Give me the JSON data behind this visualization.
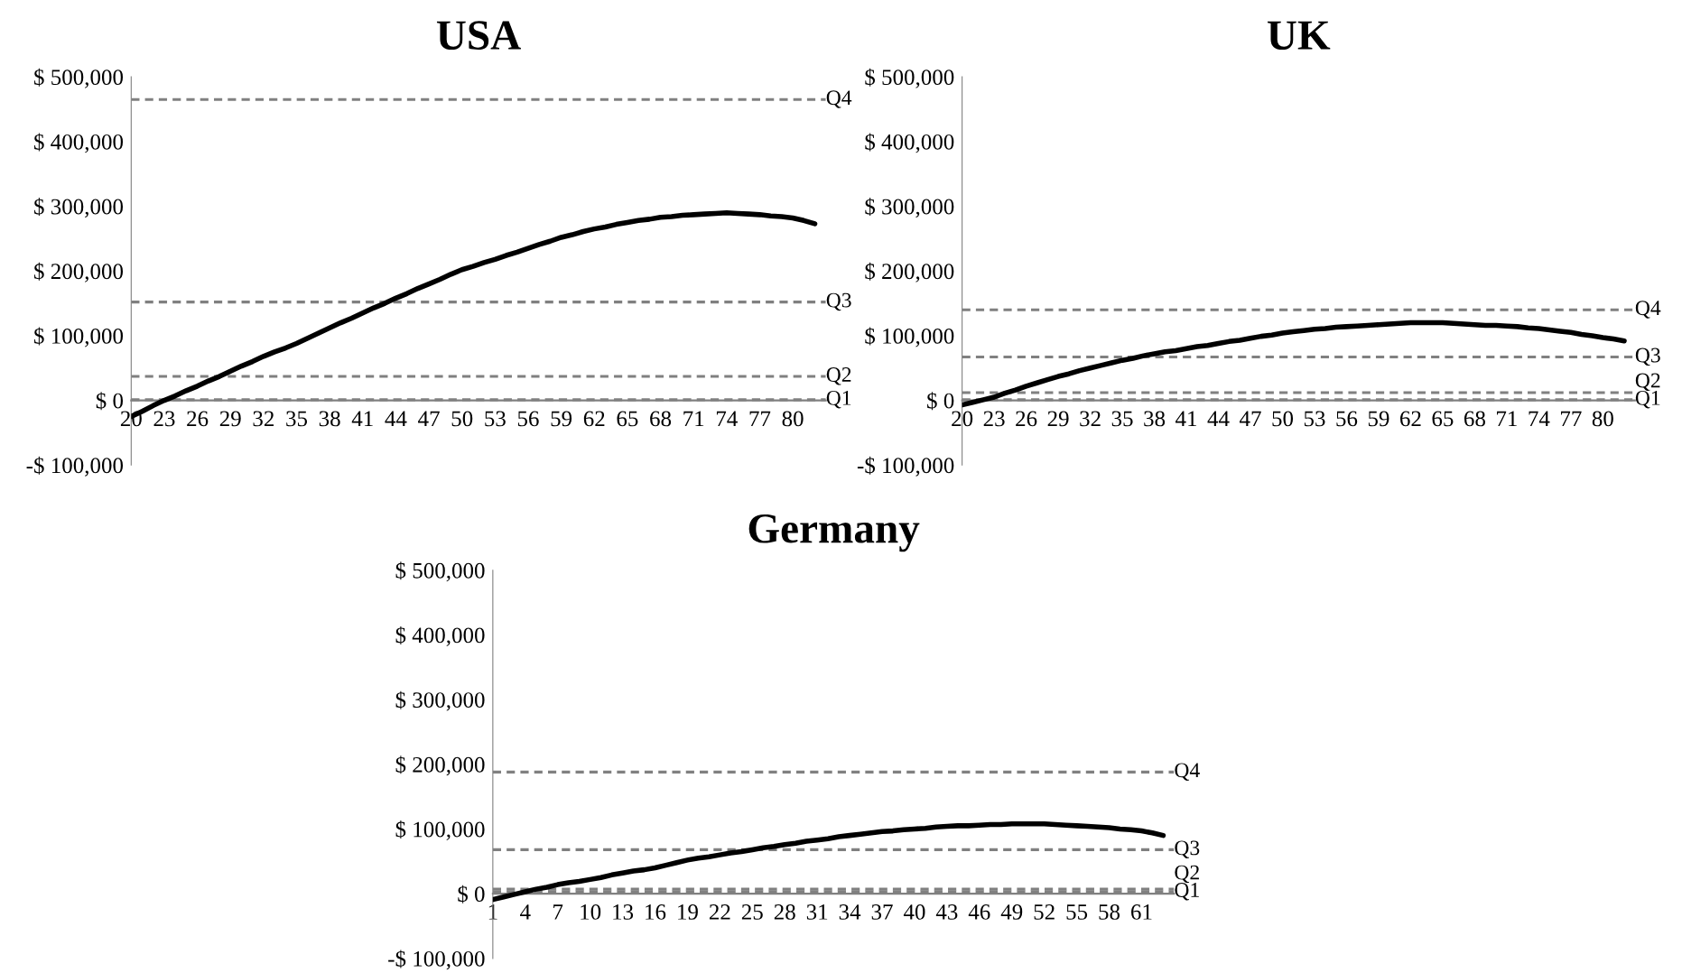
{
  "chart_data": [
    {
      "type": "line",
      "title": "USA",
      "color": "#000000",
      "line_style": "solid",
      "ylim": [
        -100000,
        500000
      ],
      "yticks": [
        {
          "value": -100000,
          "label": "-$ 100,000"
        },
        {
          "value": 0,
          "label": "$ 0"
        },
        {
          "value": 100000,
          "label": "$ 100,000"
        },
        {
          "value": 200000,
          "label": "$ 200,000"
        },
        {
          "value": 300000,
          "label": "$ 300,000"
        },
        {
          "value": 400000,
          "label": "$ 400,000"
        },
        {
          "value": 500000,
          "label": "$ 500,000"
        }
      ],
      "categories": [
        "20",
        null,
        null,
        "23",
        null,
        null,
        "26",
        null,
        null,
        "29",
        null,
        null,
        "32",
        null,
        null,
        "35",
        null,
        null,
        "38",
        null,
        null,
        "41",
        null,
        null,
        "44",
        null,
        null,
        "47",
        null,
        null,
        "50",
        null,
        null,
        "53",
        null,
        null,
        "56",
        null,
        null,
        "59",
        null,
        null,
        "62",
        null,
        null,
        "65",
        null,
        null,
        "68",
        null,
        null,
        "71",
        null,
        null,
        "74",
        null,
        null,
        "77",
        null,
        null,
        "80",
        null,
        null
      ],
      "values": [
        -25000,
        -17000,
        -8000,
        0,
        7000,
        15000,
        22000,
        30000,
        37000,
        45000,
        53000,
        60000,
        68000,
        75000,
        81000,
        88000,
        96000,
        104000,
        112000,
        120000,
        127000,
        135000,
        143000,
        150000,
        158000,
        165000,
        173000,
        180000,
        187000,
        195000,
        202000,
        207000,
        213000,
        218000,
        224000,
        229000,
        235000,
        241000,
        246000,
        252000,
        256000,
        261000,
        265000,
        268000,
        272000,
        275000,
        278000,
        280000,
        283000,
        284000,
        286000,
        287000,
        288000,
        289000,
        290000,
        289000,
        288000,
        287000,
        285000,
        284000,
        282000,
        278000,
        273000
      ],
      "ref_lines": [
        {
          "axis": "y",
          "value": 465000,
          "label": "Q4",
          "color": "#808080",
          "line_style": "dashed"
        },
        {
          "axis": "y",
          "value": 152000,
          "label": "Q3",
          "color": "#808080",
          "line_style": "dashed"
        },
        {
          "axis": "y",
          "value": 37000,
          "label": "Q2",
          "color": "#808080",
          "line_style": "dashed"
        },
        {
          "axis": "y",
          "value": 1000,
          "label": "Q1",
          "color": "#808080",
          "line_style": "dashed"
        }
      ]
    },
    {
      "type": "line",
      "title": "UK",
      "color": "#000000",
      "line_style": "solid",
      "ylim": [
        -100000,
        500000
      ],
      "yticks": [
        {
          "value": -100000,
          "label": "-$ 100,000"
        },
        {
          "value": 0,
          "label": "$ 0"
        },
        {
          "value": 100000,
          "label": "$ 100,000"
        },
        {
          "value": 200000,
          "label": "$ 200,000"
        },
        {
          "value": 300000,
          "label": "$ 300,000"
        },
        {
          "value": 400000,
          "label": "$ 400,000"
        },
        {
          "value": 500000,
          "label": "$ 500,000"
        }
      ],
      "categories": [
        "20",
        null,
        null,
        "23",
        null,
        null,
        "26",
        null,
        null,
        "29",
        null,
        null,
        "32",
        null,
        null,
        "35",
        null,
        null,
        "38",
        null,
        null,
        "41",
        null,
        null,
        "44",
        null,
        null,
        "47",
        null,
        null,
        "50",
        null,
        null,
        "53",
        null,
        null,
        "56",
        null,
        null,
        "59",
        null,
        null,
        "62",
        null,
        null,
        "65",
        null,
        null,
        "68",
        null,
        null,
        "71",
        null,
        null,
        "74",
        null,
        null,
        "77",
        null,
        null,
        "80",
        null,
        null
      ],
      "values": [
        -7000,
        -3000,
        1000,
        5000,
        11000,
        16000,
        22000,
        27000,
        32000,
        37000,
        41000,
        46000,
        50000,
        54000,
        58000,
        62000,
        65000,
        69000,
        72000,
        75000,
        77000,
        80000,
        83000,
        85000,
        88000,
        91000,
        93000,
        96000,
        99000,
        101000,
        104000,
        106000,
        108000,
        110000,
        111000,
        113000,
        114000,
        115000,
        116000,
        117000,
        118000,
        119000,
        120000,
        120000,
        120000,
        120000,
        119000,
        118000,
        117000,
        116000,
        116000,
        115000,
        114000,
        112000,
        111000,
        109000,
        107000,
        105000,
        102000,
        100000,
        97000,
        95000,
        92000
      ],
      "ref_lines": [
        {
          "axis": "y",
          "value": 140000,
          "label": "Q4",
          "color": "#808080",
          "line_style": "dashed"
        },
        {
          "axis": "y",
          "value": 67000,
          "label": "Q3",
          "color": "#808080",
          "line_style": "dashed"
        },
        {
          "axis": "y",
          "value": 12000,
          "label": "Q2",
          "color": "#808080",
          "line_style": "dashed"
        },
        {
          "axis": "y",
          "value": 1000,
          "label": "Q1",
          "color": "#808080",
          "line_style": "dashed"
        }
      ]
    },
    {
      "type": "line",
      "title": "Germany",
      "color": "#000000",
      "line_style": "solid",
      "ylim": [
        -100000,
        500000
      ],
      "yticks": [
        {
          "value": -100000,
          "label": "-$ 100,000"
        },
        {
          "value": 0,
          "label": "$ 0"
        },
        {
          "value": 100000,
          "label": "$ 100,000"
        },
        {
          "value": 200000,
          "label": "$ 200,000"
        },
        {
          "value": 300000,
          "label": "$ 300,000"
        },
        {
          "value": 400000,
          "label": "$ 400,000"
        },
        {
          "value": 500000,
          "label": "$ 500,000"
        }
      ],
      "categories": [
        "1",
        null,
        null,
        "4",
        null,
        null,
        "7",
        null,
        null,
        "10",
        null,
        null,
        "13",
        null,
        null,
        "16",
        null,
        null,
        "19",
        null,
        null,
        "22",
        null,
        null,
        "25",
        null,
        null,
        "28",
        null,
        null,
        "31",
        null,
        null,
        "34",
        null,
        null,
        "37",
        null,
        null,
        "40",
        null,
        null,
        "43",
        null,
        null,
        "46",
        null,
        null,
        "49",
        null,
        null,
        "52",
        null,
        null,
        "55",
        null,
        null,
        "58",
        null,
        null,
        "61",
        null,
        null
      ],
      "values": [
        -9000,
        -5000,
        -1000,
        3000,
        7000,
        10000,
        14000,
        17000,
        19000,
        22000,
        25000,
        29000,
        32000,
        35000,
        37000,
        40000,
        44000,
        48000,
        52000,
        55000,
        57000,
        60000,
        63000,
        65000,
        68000,
        71000,
        73000,
        76000,
        78000,
        81000,
        83000,
        85000,
        88000,
        90000,
        92000,
        94000,
        96000,
        97000,
        99000,
        100000,
        101000,
        103000,
        104000,
        105000,
        105000,
        106000,
        107000,
        107000,
        108000,
        108000,
        108000,
        108000,
        107000,
        106000,
        105000,
        104000,
        103000,
        102000,
        100000,
        99000,
        97000,
        94000,
        90000
      ],
      "ref_lines": [
        {
          "axis": "y",
          "value": 188000,
          "label": "Q4",
          "color": "#808080",
          "line_style": "dashed"
        },
        {
          "axis": "y",
          "value": 68000,
          "label": "Q3",
          "color": "#808080",
          "line_style": "dashed"
        },
        {
          "axis": "y",
          "value": 7000,
          "label": "Q2",
          "color": "#808080",
          "line_style": "dashed"
        },
        {
          "axis": "y",
          "value": 3000,
          "label": "Q1",
          "color": "#808080",
          "line_style": "dashed"
        }
      ]
    }
  ]
}
